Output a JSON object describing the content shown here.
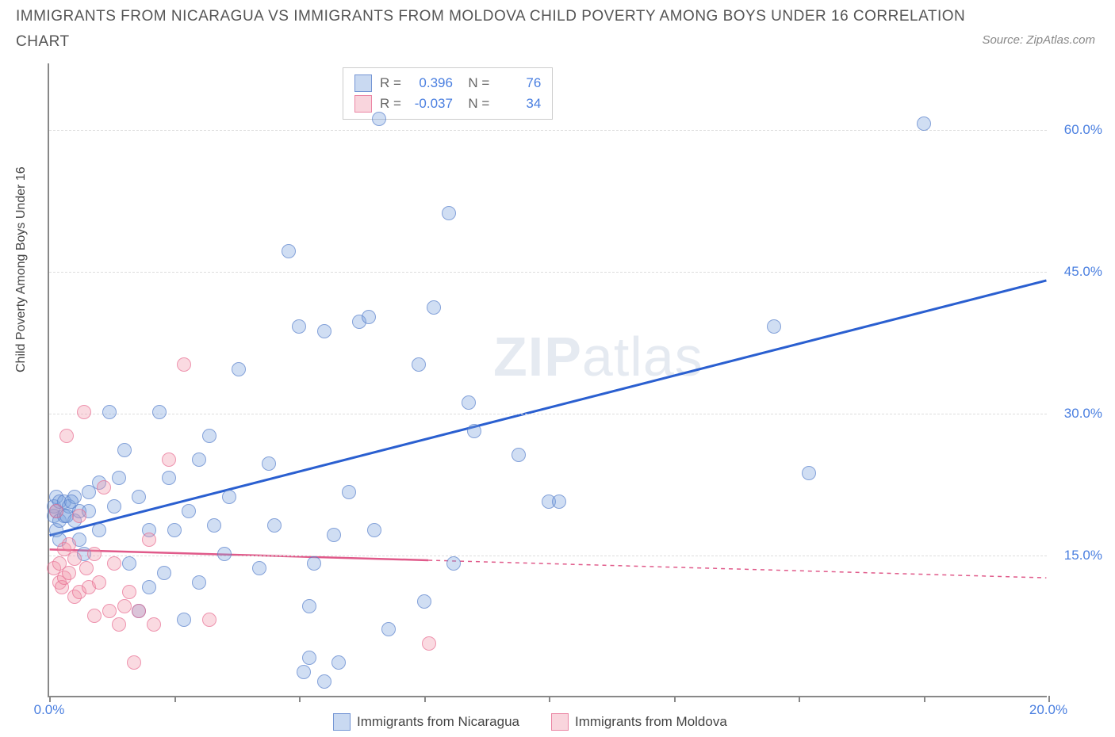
{
  "title_line1": "IMMIGRANTS FROM NICARAGUA VS IMMIGRANTS FROM MOLDOVA CHILD POVERTY AMONG BOYS UNDER 16 CORRELATION",
  "title_line2": "CHART",
  "source": "Source: ZipAtlas.com",
  "ylabel": "Child Poverty Among Boys Under 16",
  "watermark_bold": "ZIP",
  "watermark_light": "atlas",
  "chart": {
    "type": "scatter",
    "xlim": [
      0,
      20
    ],
    "ylim": [
      0,
      67
    ],
    "xtick_positions": [
      0,
      2.5,
      5,
      7.5,
      10,
      12.5,
      15,
      17.5,
      20
    ],
    "xtick_labels": {
      "0": "0.0%",
      "20": "20.0%"
    },
    "ytick_positions": [
      15,
      30,
      45,
      60
    ],
    "ytick_labels": {
      "15": "15.0%",
      "30": "30.0%",
      "45": "45.0%",
      "60": "60.0%"
    },
    "grid_color": "#dddddd",
    "axis_color": "#888888",
    "background_color": "#ffffff",
    "label_fontsize": 16,
    "tick_fontsize": 17,
    "tick_label_color": "#4a7fe0",
    "marker_radius": 9,
    "series": [
      {
        "name": "Immigrants from Nicaragua",
        "color_fill": "rgba(120,160,220,0.35)",
        "color_stroke": "rgba(80,120,200,0.6)",
        "R": "0.396",
        "N": "76",
        "trend": {
          "x1": 0,
          "y1": 17,
          "x2": 20,
          "y2": 44,
          "solid_until_x": 20,
          "color": "#2a5fd0",
          "width": 3
        },
        "points": [
          [
            0.1,
            19
          ],
          [
            0.1,
            20
          ],
          [
            0.15,
            17.5
          ],
          [
            0.15,
            19.5
          ],
          [
            0.15,
            21
          ],
          [
            0.2,
            16.5
          ],
          [
            0.2,
            20.5
          ],
          [
            0.2,
            18.5
          ],
          [
            0.3,
            19
          ],
          [
            0.3,
            20.5
          ],
          [
            0.4,
            20
          ],
          [
            0.5,
            21
          ],
          [
            0.5,
            18.5
          ],
          [
            0.6,
            16.5
          ],
          [
            0.6,
            19.5
          ],
          [
            0.7,
            15
          ],
          [
            0.8,
            21.5
          ],
          [
            0.8,
            19.5
          ],
          [
            1.0,
            17.5
          ],
          [
            1.0,
            22.5
          ],
          [
            1.2,
            30
          ],
          [
            1.3,
            20
          ],
          [
            1.4,
            23
          ],
          [
            1.5,
            26
          ],
          [
            1.6,
            14
          ],
          [
            1.8,
            9
          ],
          [
            1.8,
            21
          ],
          [
            2.0,
            17.5
          ],
          [
            2.0,
            11.5
          ],
          [
            2.2,
            30
          ],
          [
            2.3,
            13
          ],
          [
            2.4,
            23
          ],
          [
            2.5,
            17.5
          ],
          [
            2.7,
            8
          ],
          [
            2.8,
            19.5
          ],
          [
            3.0,
            25
          ],
          [
            3.0,
            12
          ],
          [
            3.2,
            27.5
          ],
          [
            3.3,
            18
          ],
          [
            3.5,
            15
          ],
          [
            3.6,
            21
          ],
          [
            3.8,
            34.5
          ],
          [
            4.2,
            13.5
          ],
          [
            4.4,
            24.5
          ],
          [
            4.5,
            18
          ],
          [
            4.8,
            47
          ],
          [
            5.0,
            39
          ],
          [
            5.1,
            2.5
          ],
          [
            5.2,
            9.5
          ],
          [
            5.2,
            4
          ],
          [
            5.3,
            14
          ],
          [
            5.5,
            38.5
          ],
          [
            5.5,
            1.5
          ],
          [
            5.7,
            17
          ],
          [
            5.8,
            3.5
          ],
          [
            6.0,
            21.5
          ],
          [
            6.2,
            39.5
          ],
          [
            6.4,
            40
          ],
          [
            6.5,
            17.5
          ],
          [
            6.6,
            61
          ],
          [
            6.8,
            7
          ],
          [
            7.4,
            35
          ],
          [
            7.5,
            10
          ],
          [
            7.7,
            41
          ],
          [
            8.0,
            51
          ],
          [
            8.1,
            14
          ],
          [
            8.4,
            31
          ],
          [
            8.5,
            28
          ],
          [
            9.4,
            25.5
          ],
          [
            10.0,
            20.5
          ],
          [
            10.2,
            20.5
          ],
          [
            14.5,
            39
          ],
          [
            15.2,
            23.5
          ],
          [
            17.5,
            60.5
          ],
          [
            0.35,
            19
          ],
          [
            0.45,
            20.5
          ]
        ]
      },
      {
        "name": "Immigrants from Moldova",
        "color_fill": "rgba(240,150,170,0.35)",
        "color_stroke": "rgba(230,100,140,0.6)",
        "R": "-0.037",
        "N": "34",
        "trend": {
          "x1": 0,
          "y1": 15.5,
          "x2": 20,
          "y2": 12.5,
          "solid_until_x": 7.6,
          "color": "#e05a8a",
          "width": 2.5
        },
        "points": [
          [
            0.1,
            13.5
          ],
          [
            0.15,
            19.5
          ],
          [
            0.2,
            12
          ],
          [
            0.2,
            14
          ],
          [
            0.25,
            11.5
          ],
          [
            0.3,
            15.5
          ],
          [
            0.3,
            12.5
          ],
          [
            0.35,
            27.5
          ],
          [
            0.4,
            13
          ],
          [
            0.4,
            16
          ],
          [
            0.5,
            10.5
          ],
          [
            0.5,
            14.5
          ],
          [
            0.6,
            19
          ],
          [
            0.6,
            11
          ],
          [
            0.7,
            30
          ],
          [
            0.75,
            13.5
          ],
          [
            0.8,
            11.5
          ],
          [
            0.9,
            15
          ],
          [
            0.9,
            8.5
          ],
          [
            1.0,
            12
          ],
          [
            1.1,
            22
          ],
          [
            1.2,
            9
          ],
          [
            1.3,
            14
          ],
          [
            1.4,
            7.5
          ],
          [
            1.5,
            9.5
          ],
          [
            1.6,
            11
          ],
          [
            1.7,
            3.5
          ],
          [
            1.8,
            9
          ],
          [
            2.0,
            16.5
          ],
          [
            2.1,
            7.5
          ],
          [
            2.4,
            25
          ],
          [
            2.7,
            35
          ],
          [
            3.2,
            8
          ],
          [
            7.6,
            5.5
          ]
        ]
      }
    ]
  },
  "bottom_legend": [
    {
      "swatch": "blue",
      "label": "Immigrants from Nicaragua"
    },
    {
      "swatch": "pink",
      "label": "Immigrants from Moldova"
    }
  ]
}
